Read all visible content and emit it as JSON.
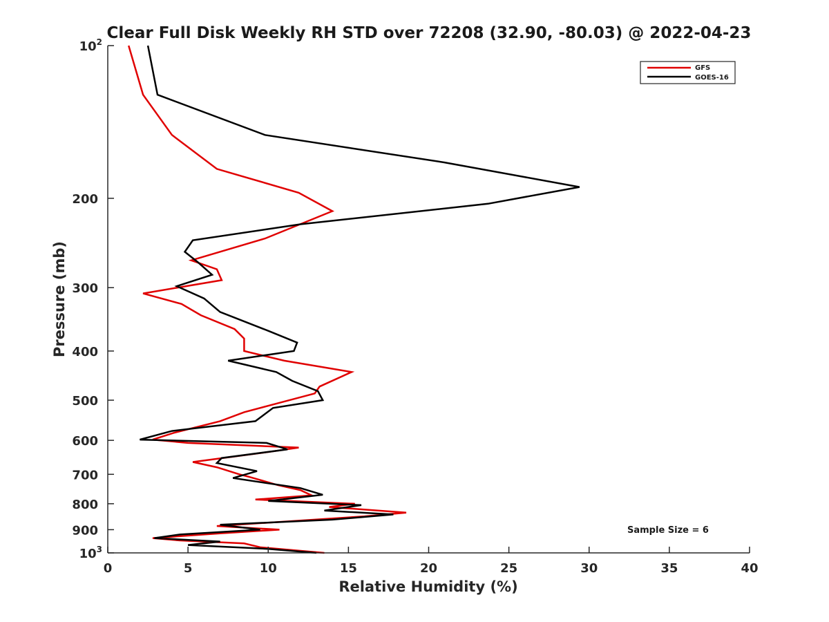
{
  "chart_data": {
    "type": "line",
    "title": "Clear Full Disk Weekly RH STD over 72208 (32.90, -80.03) @ 2022-04-23",
    "xlabel": "Relative Humidity (%)",
    "ylabel": "Pressure (mb)",
    "xlim": [
      0,
      40
    ],
    "ylim": [
      100,
      1000
    ],
    "yscale": "log",
    "y_reversed": true,
    "grid": false,
    "legend_position": "top-right",
    "x_ticks": [
      {
        "value": 0,
        "label": "0"
      },
      {
        "value": 5,
        "label": "5"
      },
      {
        "value": 10,
        "label": "10"
      },
      {
        "value": 15,
        "label": "15"
      },
      {
        "value": 20,
        "label": "20"
      },
      {
        "value": 25,
        "label": "25"
      },
      {
        "value": 30,
        "label": "30"
      },
      {
        "value": 35,
        "label": "35"
      },
      {
        "value": 40,
        "label": "40"
      }
    ],
    "y_ticks": [
      {
        "value": 100,
        "base": "10",
        "exp": "2"
      },
      {
        "value": 200,
        "base": "200",
        "exp": ""
      },
      {
        "value": 300,
        "base": "300",
        "exp": ""
      },
      {
        "value": 400,
        "base": "400",
        "exp": ""
      },
      {
        "value": 500,
        "base": "500",
        "exp": ""
      },
      {
        "value": 600,
        "base": "600",
        "exp": ""
      },
      {
        "value": 700,
        "base": "700",
        "exp": ""
      },
      {
        "value": 800,
        "base": "800",
        "exp": ""
      },
      {
        "value": 900,
        "base": "900",
        "exp": ""
      },
      {
        "value": 1000,
        "base": "10",
        "exp": "3"
      }
    ],
    "annotation": "Sample Size = 6",
    "series": [
      {
        "name": "GFS",
        "color": "#e00000",
        "points": [
          [
            1.3,
            100
          ],
          [
            2.2,
            125
          ],
          [
            4.0,
            150
          ],
          [
            6.8,
            175
          ],
          [
            11.9,
            195
          ],
          [
            14.0,
            212
          ],
          [
            9.8,
            240
          ],
          [
            5.2,
            265
          ],
          [
            6.8,
            276
          ],
          [
            7.1,
            290
          ],
          [
            2.2,
            308
          ],
          [
            4.6,
            323
          ],
          [
            5.8,
            340
          ],
          [
            7.9,
            362
          ],
          [
            8.5,
            378
          ],
          [
            8.5,
            400
          ],
          [
            11.0,
            418
          ],
          [
            15.2,
            440
          ],
          [
            13.2,
            470
          ],
          [
            12.9,
            485
          ],
          [
            10.5,
            508
          ],
          [
            8.5,
            528
          ],
          [
            7.0,
            550
          ],
          [
            4.1,
            580
          ],
          [
            2.8,
            598
          ],
          [
            5.0,
            607
          ],
          [
            11.9,
            620
          ],
          [
            10.1,
            632
          ],
          [
            5.3,
            662
          ],
          [
            6.8,
            678
          ],
          [
            8.2,
            700
          ],
          [
            8.8,
            708
          ],
          [
            10.6,
            735
          ],
          [
            12.0,
            752
          ],
          [
            12.7,
            770
          ],
          [
            9.2,
            785
          ],
          [
            10.6,
            788
          ],
          [
            15.4,
            800
          ],
          [
            13.8,
            812
          ],
          [
            18.6,
            833
          ],
          [
            16.0,
            847
          ],
          [
            6.8,
            885
          ],
          [
            10.7,
            900
          ],
          [
            7.0,
            915
          ],
          [
            2.8,
            935
          ],
          [
            4.5,
            945
          ],
          [
            8.5,
            958
          ],
          [
            9.5,
            975
          ],
          [
            13.5,
            1000
          ]
        ]
      },
      {
        "name": "GOES-16",
        "color": "#000000",
        "points": [
          [
            2.5,
            100
          ],
          [
            3.1,
            125
          ],
          [
            9.8,
            150
          ],
          [
            21.0,
            170
          ],
          [
            29.4,
            190
          ],
          [
            23.7,
            205
          ],
          [
            12.0,
            225
          ],
          [
            5.3,
            242
          ],
          [
            4.8,
            255
          ],
          [
            5.6,
            267
          ],
          [
            6.5,
            283
          ],
          [
            4.3,
            298
          ],
          [
            6.0,
            315
          ],
          [
            7.0,
            335
          ],
          [
            10.0,
            365
          ],
          [
            11.8,
            385
          ],
          [
            11.6,
            400
          ],
          [
            7.5,
            418
          ],
          [
            10.5,
            440
          ],
          [
            11.5,
            458
          ],
          [
            13.1,
            480
          ],
          [
            13.4,
            500
          ],
          [
            10.3,
            518
          ],
          [
            9.2,
            550
          ],
          [
            4.0,
            575
          ],
          [
            2.0,
            598
          ],
          [
            9.9,
            607
          ],
          [
            11.2,
            625
          ],
          [
            7.1,
            650
          ],
          [
            6.8,
            665
          ],
          [
            9.3,
            690
          ],
          [
            7.8,
            712
          ],
          [
            12.0,
            745
          ],
          [
            13.4,
            768
          ],
          [
            10.0,
            790
          ],
          [
            15.8,
            805
          ],
          [
            13.5,
            825
          ],
          [
            17.8,
            840
          ],
          [
            14.0,
            860
          ],
          [
            7.0,
            880
          ],
          [
            9.5,
            900
          ],
          [
            4.5,
            920
          ],
          [
            2.9,
            935
          ],
          [
            7.0,
            950
          ],
          [
            5.0,
            965
          ],
          [
            10.0,
            982
          ],
          [
            13.0,
            1000
          ]
        ]
      }
    ]
  }
}
